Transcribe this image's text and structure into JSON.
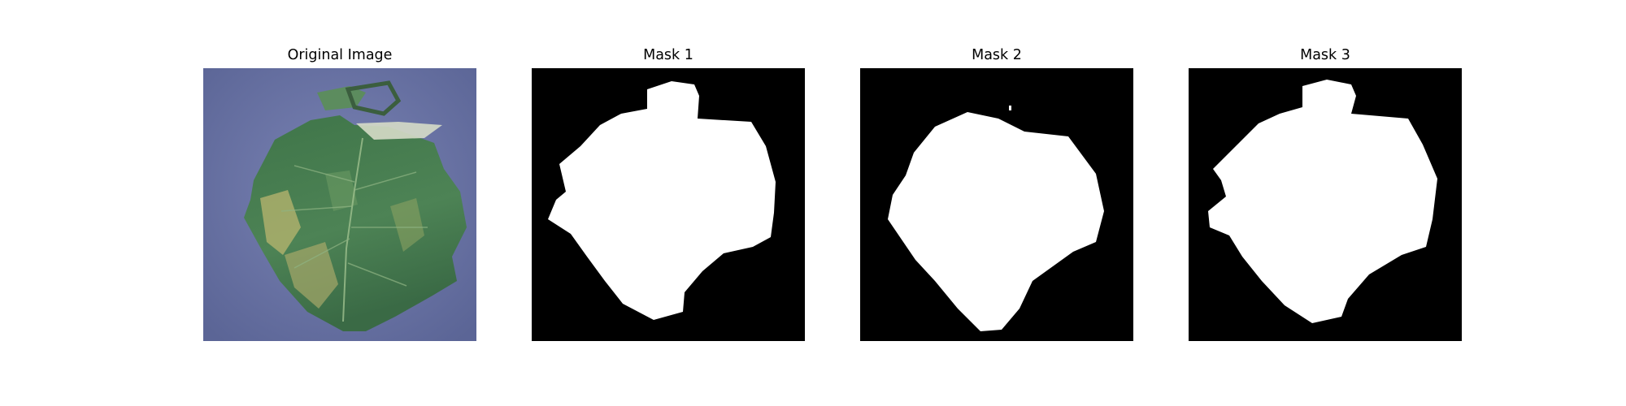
{
  "panels": [
    {
      "title": "Original Image"
    },
    {
      "title": "Mask 1"
    },
    {
      "title": "Mask 2"
    },
    {
      "title": "Mask 3"
    }
  ],
  "colors": {
    "page_background": "#ffffff",
    "mask_background": "#000000",
    "mask_foreground": "#ffffff",
    "photo_background": "#6b74a6",
    "leaf_dark": "#3a6a45",
    "leaf_mid": "#4f8a58",
    "leaf_chlorosis": "#b9b56f"
  }
}
